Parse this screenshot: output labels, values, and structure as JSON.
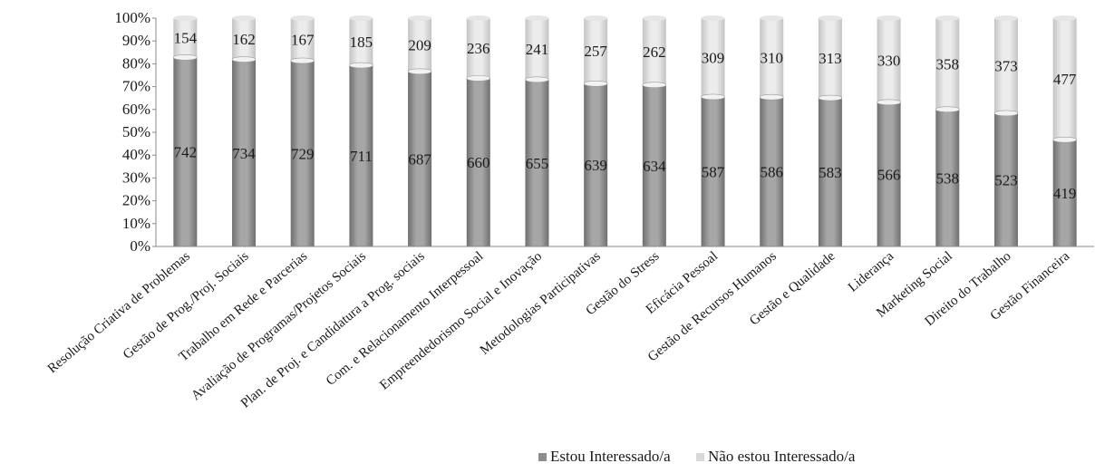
{
  "chart_data": {
    "type": "bar",
    "stacked": "percent",
    "title": "",
    "xlabel": "",
    "ylabel": "",
    "ylim": [
      0,
      100
    ],
    "yticks": [
      "0%",
      "10%",
      "20%",
      "30%",
      "40%",
      "50%",
      "60%",
      "70%",
      "80%",
      "90%",
      "100%"
    ],
    "grid": false,
    "legend_position": "bottom",
    "categories": [
      "Resolução Criativa de Problemas",
      "Gestão de Prog./Proj. Sociais",
      "Trabalho em Rede e Parcerias",
      "Avaliação de Programas/Projetos Sociais",
      "Plan. de Proj. e Candidatura a Prog. sociais",
      "Com. e Relacionamento Interpessoal",
      "Empreendedorismo Social e Inovação",
      "Metodologias Participativas",
      "Gestão do Stress",
      "Eficácia Pessoal",
      "Gestão de Recursos Humanos",
      "Gestão e Qualidade",
      "Liderança",
      "Marketing Social",
      "Direito do Trabalho",
      "Gestão Financeira"
    ],
    "series": [
      {
        "name": "Estou Interessado/a",
        "color": "#8c8c8c",
        "values": [
          742,
          734,
          729,
          711,
          687,
          660,
          655,
          639,
          634,
          587,
          586,
          583,
          566,
          538,
          523,
          419
        ]
      },
      {
        "name": "Não estou Interessado/a",
        "color": "#d9d9d9",
        "values": [
          154,
          162,
          167,
          185,
          209,
          236,
          241,
          257,
          262,
          309,
          310,
          313,
          330,
          358,
          373,
          477
        ]
      }
    ]
  }
}
